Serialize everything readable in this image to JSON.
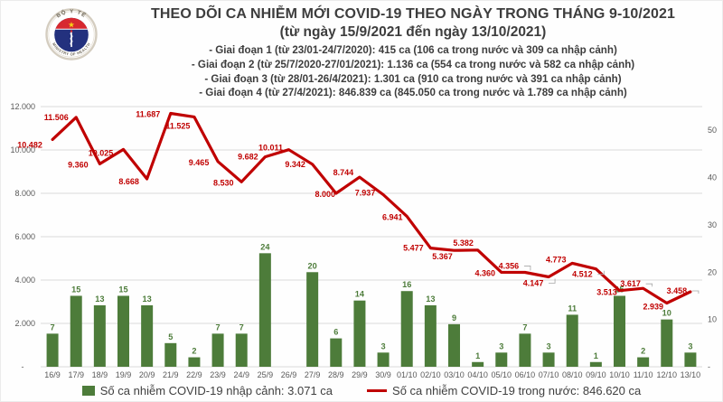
{
  "logo": {
    "top_text": "BỘ Y TẾ",
    "bottom_text": "MINISTRY OF HEALTH"
  },
  "header": {
    "title": "THEO DÕI CA NHIỄM MỚI COVID-19 THEO NGÀY TRONG THÁNG 9-10/2021",
    "subtitle": "(từ ngày 15/9/2021 đến ngày 13/10/2021)",
    "notes": [
      "- Giai đoạn 1 (từ 23/01-24/7/2020): 415 ca (106 ca trong nước và 309 ca nhập cảnh)",
      "- Giai đoạn 2 (từ 25/7/2020-27/01/2021): 1.136 ca (554 ca trong nước và 582 ca nhập cảnh)",
      "- Giai đoạn 3 (từ 28/01-26/4/2021): 1.301 ca (910 ca trong nước và 391 ca nhập cảnh)",
      "- Giai đoạn 4 (từ 27/4/2021): 846.839 ca (845.050 ca trong nước và 1.789 ca nhập cảnh)"
    ]
  },
  "chart_data": {
    "type": "combo bar+line",
    "title": "THEO DÕI CA NHIỄM MỚI COVID-19 THEO NGÀY TRONG THÁNG 9-10/2021 (từ ngày 15/9/2021 đến ngày 13/10/2021)",
    "grid": true,
    "legend_position": "bottom",
    "categories": [
      "16/9",
      "17/9",
      "18/9",
      "19/9",
      "20/9",
      "21/9",
      "22/9",
      "23/9",
      "24/9",
      "25/9",
      "26/9",
      "27/9",
      "28/9",
      "29/9",
      "30/9",
      "01/10",
      "02/10",
      "03/10",
      "04/10",
      "05/10",
      "06/10",
      "07/10",
      "08/10",
      "09/10",
      "10/10",
      "11/10",
      "12/10",
      "13/10"
    ],
    "series": [
      {
        "name": "Số ca nhiễm COVID-19 nhập cảnh",
        "chart_type": "bar",
        "axis": "right",
        "color": "#4d7c3a",
        "values": [
          7,
          15,
          13,
          15,
          13,
          5,
          2,
          7,
          7,
          24,
          0,
          20,
          6,
          14,
          3,
          16,
          13,
          9,
          1,
          3,
          7,
          3,
          11,
          1,
          15,
          2,
          10,
          3
        ],
        "data_labels": [
          "7",
          "15",
          "13",
          "15",
          "13",
          "5",
          "2",
          "7",
          "7",
          "24",
          "",
          "20",
          "6",
          "14",
          "3",
          "16",
          "13",
          "9",
          "1",
          "3",
          "7",
          "3",
          "11",
          "1",
          "15",
          "2",
          "10",
          "3"
        ]
      },
      {
        "name": "Số ca nhiễm COVID-19 trong nước",
        "chart_type": "line",
        "axis": "left",
        "color": "#c00000",
        "values": [
          10482,
          11506,
          9360,
          10025,
          8668,
          11687,
          11525,
          9465,
          8530,
          9682,
          10011,
          9342,
          8000,
          8744,
          7937,
          6941,
          5477,
          5367,
          5382,
          4360,
          4356,
          4147,
          4773,
          4512,
          3513,
          3617,
          2939,
          3458
        ],
        "data_labels": [
          "10.482",
          "11.506",
          "9.360",
          "10.025",
          "8.668",
          "11.687",
          "11.525",
          "9.465",
          "8.530",
          "9.682",
          "10.011",
          "9.342",
          "8.000",
          "8.744",
          "7.937",
          "6.941",
          "5.477",
          "5.367",
          "5.382",
          "4.360",
          "4.356",
          "4.147",
          "4.773",
          "4.512",
          "3.513",
          "3.617",
          "2.939",
          "3.458"
        ]
      }
    ],
    "left_axis": {
      "max": 12000,
      "tick_values": [
        12000,
        10000,
        8000,
        6000,
        4000,
        2000,
        0
      ],
      "tick_labels": [
        "12.000",
        "10.000",
        "8.000",
        "6.000",
        "4.000",
        "2.000",
        "-"
      ]
    },
    "right_axis": {
      "max": 55,
      "tick_values": [
        50,
        40,
        30,
        20,
        10,
        0
      ],
      "tick_labels": [
        "50",
        "40",
        "30",
        "20",
        "10",
        "-"
      ]
    }
  },
  "legend": {
    "imported": "Số ca nhiễm COVID-19 nhập cảnh: 3.071 ca",
    "domestic": "Số ca nhiễm COVID-19 trong nước: 846.620 ca"
  },
  "colors": {
    "bar": "#4d7c3a",
    "line": "#c00000",
    "grid": "#d9d9d9",
    "axis_text": "#595959",
    "header_text": "#3d3d3d"
  }
}
